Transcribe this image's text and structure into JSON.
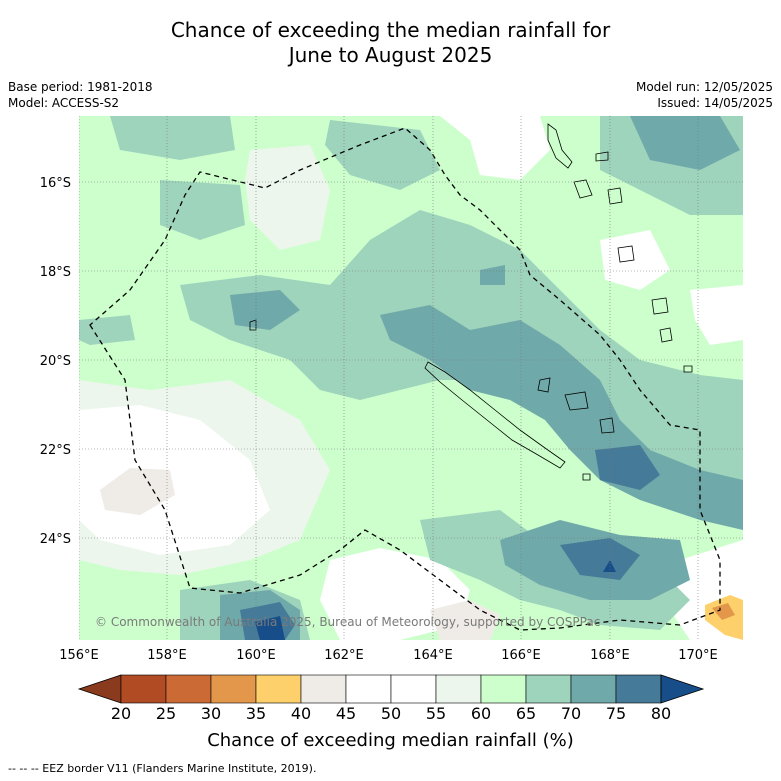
{
  "title": {
    "line1": "Chance of exceeding the median rainfall for",
    "line2": "June to August 2025"
  },
  "meta": {
    "base_period": "Base period: 1981-2018",
    "model": "Model: ACCESS-S2",
    "model_run": "Model run: 12/05/2025",
    "issued": "Issued: 14/05/2025"
  },
  "map": {
    "copyright": "© Commonwealth of Australia 2025, Bureau of Meteorology, supported by COSPPac",
    "lat_labels": [
      "16°S",
      "18°S",
      "20°S",
      "22°S",
      "24°S"
    ],
    "lon_labels": [
      "156°E",
      "158°E",
      "160°E",
      "162°E",
      "164°E",
      "166°E",
      "168°E",
      "170°E"
    ]
  },
  "colorbar": {
    "ticks": [
      "20",
      "25",
      "30",
      "35",
      "40",
      "45",
      "50",
      "55",
      "60",
      "65",
      "70",
      "75",
      "80"
    ],
    "colors": [
      "#b04b24",
      "#cc6a35",
      "#e3974a",
      "#fdd06b",
      "#efebe7",
      "#ffffff",
      "#ffffff",
      "#ecf6ec",
      "#ccffcc",
      "#9ed3bc",
      "#70a9a9",
      "#457a99"
    ],
    "low_end_color": "#8a3a1d",
    "high_end_color": "#174e8a",
    "label": "Chance of exceeding median rainfall (%)"
  },
  "footnote": "--  --  -- EEZ border V11 (Flanders Marine Institute, 2019)."
}
